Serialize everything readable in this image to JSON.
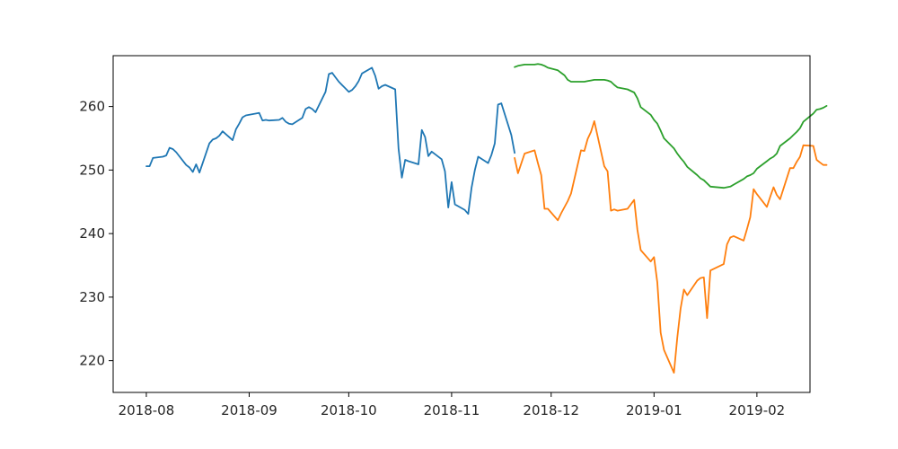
{
  "chart_data": {
    "type": "line",
    "title": "",
    "xlabel": "",
    "ylabel": "",
    "x_axis_type": "date",
    "xlim": [
      "2018-07-22",
      "2019-02-17"
    ],
    "ylim": [
      215,
      268
    ],
    "grid": false,
    "x_ticks": [
      "2018-08-01",
      "2018-09-01",
      "2018-10-01",
      "2018-11-01",
      "2018-12-01",
      "2019-01-01",
      "2019-02-01"
    ],
    "x_tick_labels": [
      "2018-08",
      "2018-09",
      "2018-10",
      "2018-11",
      "2018-12",
      "2019-01",
      "2019-02"
    ],
    "y_ticks": [
      220,
      230,
      240,
      250,
      260
    ],
    "y_tick_labels": [
      "220",
      "230",
      "240",
      "250",
      "260"
    ],
    "series": [
      {
        "color": "#1f77b4",
        "points": [
          [
            "2018-08-01",
            250.6
          ],
          [
            "2018-08-02",
            250.6
          ],
          [
            "2018-08-03",
            251.9
          ],
          [
            "2018-08-06",
            252.1
          ],
          [
            "2018-08-07",
            252.3
          ],
          [
            "2018-08-08",
            253.5
          ],
          [
            "2018-08-09",
            253.3
          ],
          [
            "2018-08-10",
            252.8
          ],
          [
            "2018-08-13",
            250.8
          ],
          [
            "2018-08-14",
            250.4
          ],
          [
            "2018-08-15",
            249.7
          ],
          [
            "2018-08-16",
            250.9
          ],
          [
            "2018-08-17",
            249.6
          ],
          [
            "2018-08-20",
            254.2
          ],
          [
            "2018-08-21",
            254.8
          ],
          [
            "2018-08-22",
            255.0
          ],
          [
            "2018-08-23",
            255.4
          ],
          [
            "2018-08-24",
            256.1
          ],
          [
            "2018-08-27",
            254.7
          ],
          [
            "2018-08-28",
            256.4
          ],
          [
            "2018-08-29",
            257.3
          ],
          [
            "2018-08-30",
            258.3
          ],
          [
            "2018-08-31",
            258.6
          ],
          [
            "2018-09-04",
            259.0
          ],
          [
            "2018-09-05",
            257.8
          ],
          [
            "2018-09-06",
            257.9
          ],
          [
            "2018-09-07",
            257.8
          ],
          [
            "2018-09-10",
            257.9
          ],
          [
            "2018-09-11",
            258.2
          ],
          [
            "2018-09-12",
            257.6
          ],
          [
            "2018-09-13",
            257.3
          ],
          [
            "2018-09-14",
            257.2
          ],
          [
            "2018-09-17",
            258.2
          ],
          [
            "2018-09-18",
            259.6
          ],
          [
            "2018-09-19",
            259.9
          ],
          [
            "2018-09-20",
            259.6
          ],
          [
            "2018-09-21",
            259.1
          ],
          [
            "2018-09-24",
            262.3
          ],
          [
            "2018-09-25",
            265.1
          ],
          [
            "2018-09-26",
            265.3
          ],
          [
            "2018-09-27",
            264.6
          ],
          [
            "2018-09-28",
            263.9
          ],
          [
            "2018-10-01",
            262.3
          ],
          [
            "2018-10-02",
            262.6
          ],
          [
            "2018-10-03",
            263.2
          ],
          [
            "2018-10-04",
            264.0
          ],
          [
            "2018-10-05",
            265.2
          ],
          [
            "2018-10-08",
            266.1
          ],
          [
            "2018-10-09",
            264.8
          ],
          [
            "2018-10-10",
            262.8
          ],
          [
            "2018-10-11",
            263.2
          ],
          [
            "2018-10-12",
            263.4
          ],
          [
            "2018-10-15",
            262.7
          ],
          [
            "2018-10-16",
            253.4
          ],
          [
            "2018-10-17",
            248.8
          ],
          [
            "2018-10-18",
            251.6
          ],
          [
            "2018-10-19",
            251.4
          ],
          [
            "2018-10-22",
            250.9
          ],
          [
            "2018-10-23",
            256.3
          ],
          [
            "2018-10-24",
            255.2
          ],
          [
            "2018-10-25",
            252.2
          ],
          [
            "2018-10-26",
            252.9
          ],
          [
            "2018-10-29",
            251.7
          ],
          [
            "2018-10-30",
            249.8
          ],
          [
            "2018-10-31",
            244.1
          ],
          [
            "2018-11-01",
            248.1
          ],
          [
            "2018-11-02",
            244.6
          ],
          [
            "2018-11-05",
            243.7
          ],
          [
            "2018-11-06",
            243.1
          ],
          [
            "2018-11-07",
            247.2
          ],
          [
            "2018-11-08",
            250.0
          ],
          [
            "2018-11-09",
            252.1
          ],
          [
            "2018-11-12",
            251.1
          ],
          [
            "2018-11-13",
            252.4
          ],
          [
            "2018-11-14",
            254.2
          ],
          [
            "2018-11-15",
            260.3
          ],
          [
            "2018-11-16",
            260.5
          ],
          [
            "2018-11-19",
            255.5
          ],
          [
            "2018-11-20",
            252.7
          ]
        ]
      },
      {
        "color": "#ff7f0e",
        "points": [
          [
            "2018-11-20",
            251.9
          ],
          [
            "2018-11-21",
            249.5
          ],
          [
            "2018-11-23",
            252.6
          ],
          [
            "2018-11-26",
            253.1
          ],
          [
            "2018-11-27",
            251.1
          ],
          [
            "2018-11-28",
            249.2
          ],
          [
            "2018-11-29",
            243.9
          ],
          [
            "2018-11-30",
            243.9
          ],
          [
            "2018-12-03",
            242.1
          ],
          [
            "2018-12-04",
            243.2
          ],
          [
            "2018-12-06",
            245.1
          ],
          [
            "2018-12-07",
            246.3
          ],
          [
            "2018-12-10",
            253.1
          ],
          [
            "2018-12-11",
            253.0
          ],
          [
            "2018-12-12",
            254.9
          ],
          [
            "2018-12-13",
            256.0
          ],
          [
            "2018-12-14",
            257.7
          ],
          [
            "2018-12-17",
            250.6
          ],
          [
            "2018-12-18",
            249.8
          ],
          [
            "2018-12-19",
            243.6
          ],
          [
            "2018-12-20",
            243.8
          ],
          [
            "2018-12-21",
            243.6
          ],
          [
            "2018-12-24",
            243.9
          ],
          [
            "2018-12-26",
            245.3
          ],
          [
            "2018-12-27",
            240.6
          ],
          [
            "2018-12-28",
            237.4
          ],
          [
            "2018-12-31",
            235.6
          ],
          [
            "2019-01-01",
            236.3
          ],
          [
            "2019-01-02",
            232.3
          ],
          [
            "2019-01-03",
            224.4
          ],
          [
            "2019-01-04",
            221.7
          ],
          [
            "2019-01-07",
            218.1
          ],
          [
            "2019-01-08",
            223.6
          ],
          [
            "2019-01-09",
            228.2
          ],
          [
            "2019-01-10",
            231.2
          ],
          [
            "2019-01-11",
            230.3
          ],
          [
            "2019-01-14",
            232.6
          ],
          [
            "2019-01-15",
            233.0
          ],
          [
            "2019-01-16",
            233.1
          ],
          [
            "2019-01-17",
            226.7
          ],
          [
            "2019-01-18",
            234.2
          ],
          [
            "2019-01-22",
            235.2
          ],
          [
            "2019-01-23",
            238.3
          ],
          [
            "2019-01-24",
            239.4
          ],
          [
            "2019-01-25",
            239.6
          ],
          [
            "2019-01-28",
            238.9
          ],
          [
            "2019-01-29",
            240.7
          ],
          [
            "2019-01-30",
            242.6
          ],
          [
            "2019-01-31",
            247.0
          ],
          [
            "2019-02-01",
            246.2
          ],
          [
            "2019-02-04",
            244.2
          ],
          [
            "2019-02-05",
            245.8
          ],
          [
            "2019-02-06",
            247.3
          ],
          [
            "2019-02-07",
            246.1
          ],
          [
            "2019-02-08",
            245.4
          ],
          [
            "2019-02-11",
            250.3
          ],
          [
            "2019-02-12",
            250.3
          ],
          [
            "2019-02-13",
            251.3
          ],
          [
            "2019-02-14",
            252.1
          ],
          [
            "2019-02-15",
            253.9
          ],
          [
            "2019-02-18",
            253.8
          ],
          [
            "2019-02-19",
            251.6
          ],
          [
            "2019-02-20",
            251.2
          ],
          [
            "2019-02-21",
            250.8
          ],
          [
            "2019-02-22",
            250.8
          ]
        ]
      },
      {
        "color": "#2ca02c",
        "points": [
          [
            "2018-11-20",
            266.2
          ],
          [
            "2018-11-21",
            266.4
          ],
          [
            "2018-11-23",
            266.6
          ],
          [
            "2018-11-26",
            266.6
          ],
          [
            "2018-11-27",
            266.7
          ],
          [
            "2018-11-28",
            266.6
          ],
          [
            "2018-11-29",
            266.4
          ],
          [
            "2018-11-30",
            266.1
          ],
          [
            "2018-12-03",
            265.7
          ],
          [
            "2018-12-04",
            265.3
          ],
          [
            "2018-12-05",
            264.9
          ],
          [
            "2018-12-06",
            264.2
          ],
          [
            "2018-12-07",
            263.9
          ],
          [
            "2018-12-10",
            263.9
          ],
          [
            "2018-12-11",
            263.9
          ],
          [
            "2018-12-12",
            264.0
          ],
          [
            "2018-12-13",
            264.1
          ],
          [
            "2018-12-14",
            264.2
          ],
          [
            "2018-12-17",
            264.2
          ],
          [
            "2018-12-18",
            264.1
          ],
          [
            "2018-12-19",
            263.9
          ],
          [
            "2018-12-20",
            263.4
          ],
          [
            "2018-12-21",
            263.0
          ],
          [
            "2018-12-24",
            262.7
          ],
          [
            "2018-12-26",
            262.2
          ],
          [
            "2018-12-27",
            261.3
          ],
          [
            "2018-12-28",
            259.9
          ],
          [
            "2018-12-31",
            258.7
          ],
          [
            "2019-01-01",
            257.9
          ],
          [
            "2019-01-02",
            257.3
          ],
          [
            "2019-01-03",
            256.2
          ],
          [
            "2019-01-04",
            255.0
          ],
          [
            "2019-01-07",
            253.4
          ],
          [
            "2019-01-08",
            252.6
          ],
          [
            "2019-01-09",
            251.9
          ],
          [
            "2019-01-10",
            251.3
          ],
          [
            "2019-01-11",
            250.5
          ],
          [
            "2019-01-14",
            249.2
          ],
          [
            "2019-01-15",
            248.7
          ],
          [
            "2019-01-16",
            248.4
          ],
          [
            "2019-01-17",
            247.9
          ],
          [
            "2019-01-18",
            247.4
          ],
          [
            "2019-01-22",
            247.2
          ],
          [
            "2019-01-23",
            247.3
          ],
          [
            "2019-01-24",
            247.4
          ],
          [
            "2019-01-25",
            247.7
          ],
          [
            "2019-01-28",
            248.6
          ],
          [
            "2019-01-29",
            249.0
          ],
          [
            "2019-01-30",
            249.2
          ],
          [
            "2019-01-31",
            249.5
          ],
          [
            "2019-02-01",
            250.2
          ],
          [
            "2019-02-04",
            251.4
          ],
          [
            "2019-02-05",
            251.8
          ],
          [
            "2019-02-06",
            252.1
          ],
          [
            "2019-02-07",
            252.6
          ],
          [
            "2019-02-08",
            253.8
          ],
          [
            "2019-02-11",
            255.0
          ],
          [
            "2019-02-12",
            255.5
          ],
          [
            "2019-02-13",
            256.0
          ],
          [
            "2019-02-14",
            256.6
          ],
          [
            "2019-02-15",
            257.6
          ],
          [
            "2019-02-18",
            258.9
          ],
          [
            "2019-02-19",
            259.5
          ],
          [
            "2019-02-20",
            259.6
          ],
          [
            "2019-02-21",
            259.8
          ],
          [
            "2019-02-22",
            260.1
          ]
        ]
      }
    ]
  }
}
